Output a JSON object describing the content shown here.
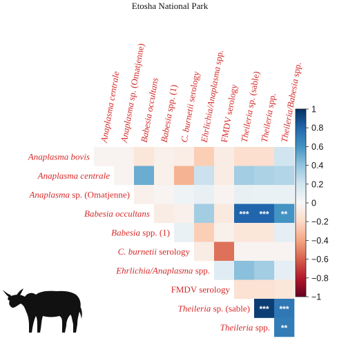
{
  "chart_data": {
    "type": "heatmap",
    "title": "Etosha National Park",
    "variables": [
      "Anaplasma bovis",
      "Anaplasma centrale",
      "Anaplasma sp. (Omatjenne)",
      "Babesia occultans",
      "Babesia spp. (1)",
      "C. burnetii serology",
      "Ehrlichia/Anaplasma spp.",
      "FMDV serology",
      "Theileria sp. (sable)",
      "Theileria spp.",
      "Theileria/Babesia spp."
    ],
    "row_labels": [
      {
        "parts": [
          {
            "t": "Anaplasma bovis",
            "i": true
          }
        ]
      },
      {
        "parts": [
          {
            "t": "Anaplasma centrale",
            "i": true
          }
        ]
      },
      {
        "parts": [
          {
            "t": "Anaplasma",
            "i": true
          },
          {
            "t": " sp. (Omatjenne)",
            "i": false
          }
        ]
      },
      {
        "parts": [
          {
            "t": "Babesia occultans",
            "i": true
          }
        ]
      },
      {
        "parts": [
          {
            "t": "Babesia",
            "i": true
          },
          {
            "t": " spp. (1)",
            "i": false
          }
        ]
      },
      {
        "parts": [
          {
            "t": "C. burnetii",
            "i": true
          },
          {
            "t": " serology",
            "i": false
          }
        ]
      },
      {
        "parts": [
          {
            "t": "Ehrlichia/Anaplasma",
            "i": true
          },
          {
            "t": " spp.",
            "i": false
          }
        ]
      },
      {
        "parts": [
          {
            "t": "FMDV serology",
            "i": false
          }
        ]
      },
      {
        "parts": [
          {
            "t": "Theileria",
            "i": true
          },
          {
            "t": " sp. (sable)",
            "i": false
          }
        ]
      },
      {
        "parts": [
          {
            "t": "Theileria",
            "i": true
          },
          {
            "t": " spp.",
            "i": false
          }
        ]
      }
    ],
    "column_labels": [
      {
        "parts": [
          {
            "t": "Anaplasma centrale",
            "i": true
          }
        ]
      },
      {
        "parts": [
          {
            "t": "Anaplasma",
            "i": true
          },
          {
            "t": " sp. (Omatjenne)",
            "i": false
          }
        ]
      },
      {
        "parts": [
          {
            "t": "Babesia occultans",
            "i": true
          }
        ]
      },
      {
        "parts": [
          {
            "t": "Babesia",
            "i": true
          },
          {
            "t": " spp. (1)",
            "i": false
          }
        ]
      },
      {
        "parts": [
          {
            "t": "C. burnetii",
            "i": true
          },
          {
            "t": " serology",
            "i": false
          }
        ]
      },
      {
        "parts": [
          {
            "t": "Ehrlichia/Anaplasma",
            "i": true
          },
          {
            "t": " spp.",
            "i": false
          }
        ]
      },
      {
        "parts": [
          {
            "t": "FMDV serology",
            "i": false
          }
        ]
      },
      {
        "parts": [
          {
            "t": "Theileria",
            "i": true
          },
          {
            "t": " sp. (sable)",
            "i": false
          }
        ]
      },
      {
        "parts": [
          {
            "t": "Theileria",
            "i": true
          },
          {
            "t": " spp.",
            "i": false
          }
        ]
      },
      {
        "parts": [
          {
            "t": "Theileria/Babesia",
            "i": true
          },
          {
            "t": " spp.",
            "i": false
          }
        ]
      }
    ],
    "cells": [
      {
        "row": 0,
        "col": 0,
        "value": -0.03
      },
      {
        "row": 0,
        "col": 1,
        "value": -0.03
      },
      {
        "row": 0,
        "col": 2,
        "value": -0.12
      },
      {
        "row": 0,
        "col": 3,
        "value": -0.05
      },
      {
        "row": 0,
        "col": 4,
        "value": -0.07
      },
      {
        "row": 0,
        "col": 5,
        "value": -0.25
      },
      {
        "row": 0,
        "col": 6,
        "value": -0.08
      },
      {
        "row": 0,
        "col": 7,
        "value": -0.17
      },
      {
        "row": 0,
        "col": 8,
        "value": -0.17
      },
      {
        "row": 0,
        "col": 9,
        "value": 0.2
      },
      {
        "row": 1,
        "col": 1,
        "value": -0.03
      },
      {
        "row": 1,
        "col": 2,
        "value": 0.5
      },
      {
        "row": 1,
        "col": 3,
        "value": -0.05
      },
      {
        "row": 1,
        "col": 4,
        "value": -0.35
      },
      {
        "row": 1,
        "col": 5,
        "value": 0.22
      },
      {
        "row": 1,
        "col": 6,
        "value": -0.08
      },
      {
        "row": 1,
        "col": 7,
        "value": 0.35
      },
      {
        "row": 1,
        "col": 8,
        "value": 0.32
      },
      {
        "row": 1,
        "col": 9,
        "value": 0.3
      },
      {
        "row": 2,
        "col": 2,
        "value": -0.05
      },
      {
        "row": 2,
        "col": 3,
        "value": -0.02
      },
      {
        "row": 2,
        "col": 4,
        "value": 0.05
      },
      {
        "row": 2,
        "col": 5,
        "value": 0.08
      },
      {
        "row": 2,
        "col": 6,
        "value": -0.03
      },
      {
        "row": 2,
        "col": 7,
        "value": 0.08
      },
      {
        "row": 2,
        "col": 8,
        "value": 0.07
      },
      {
        "row": 2,
        "col": 9,
        "value": 0.07
      },
      {
        "row": 3,
        "col": 3,
        "value": -0.08
      },
      {
        "row": 3,
        "col": 4,
        "value": -0.05
      },
      {
        "row": 3,
        "col": 5,
        "value": 0.35
      },
      {
        "row": 3,
        "col": 6,
        "value": -0.1
      },
      {
        "row": 3,
        "col": 7,
        "value": 0.8
      },
      {
        "row": 3,
        "col": 8,
        "value": 0.8
      },
      {
        "row": 3,
        "col": 9,
        "value": 0.6
      },
      {
        "row": 4,
        "col": 4,
        "value": 0.07
      },
      {
        "row": 4,
        "col": 5,
        "value": -0.25
      },
      {
        "row": 4,
        "col": 6,
        "value": -0.05
      },
      {
        "row": 4,
        "col": 7,
        "value": -0.12
      },
      {
        "row": 4,
        "col": 8,
        "value": -0.12
      },
      {
        "row": 4,
        "col": 9,
        "value": 0.1
      },
      {
        "row": 5,
        "col": 5,
        "value": -0.08
      },
      {
        "row": 5,
        "col": 6,
        "value": -0.55
      },
      {
        "row": 5,
        "col": 7,
        "value": -0.03
      },
      {
        "row": 5,
        "col": 8,
        "value": -0.03
      },
      {
        "row": 5,
        "col": 9,
        "value": -0.03
      },
      {
        "row": 6,
        "col": 6,
        "value": 0.12
      },
      {
        "row": 6,
        "col": 7,
        "value": 0.42
      },
      {
        "row": 6,
        "col": 8,
        "value": 0.35
      },
      {
        "row": 6,
        "col": 9,
        "value": 0.1
      },
      {
        "row": 7,
        "col": 7,
        "value": -0.15
      },
      {
        "row": 7,
        "col": 8,
        "value": -0.15
      },
      {
        "row": 7,
        "col": 9,
        "value": -0.12
      },
      {
        "row": 8,
        "col": 8,
        "value": 0.95
      },
      {
        "row": 8,
        "col": 9,
        "value": 0.72
      },
      {
        "row": 9,
        "col": 9,
        "value": 0.7
      }
    ],
    "significance": [
      {
        "row": 3,
        "col": 7,
        "label": "***"
      },
      {
        "row": 3,
        "col": 8,
        "label": "***"
      },
      {
        "row": 3,
        "col": 9,
        "label": "**"
      },
      {
        "row": 8,
        "col": 8,
        "label": "***"
      },
      {
        "row": 8,
        "col": 9,
        "label": "***"
      },
      {
        "row": 9,
        "col": 9,
        "label": "**"
      }
    ],
    "colorbar": {
      "range": [
        -1,
        1
      ],
      "ticks": [
        1,
        0.8,
        0.6,
        0.4,
        0.2,
        0,
        -0.2,
        -0.4,
        -0.6,
        -0.8,
        -1
      ],
      "tick_labels": [
        "1",
        "0.8",
        "0.6",
        "0.4",
        "0.2",
        "0",
        "−0.2",
        "−0.4",
        "−0.6",
        "−0.8",
        "−1"
      ]
    },
    "colors": {
      "negative_strong": "#67001f",
      "neutral": "#f7f7f7",
      "positive_strong": "#053061",
      "label_color": "#d62a2a"
    },
    "icon": "wildebeest-silhouette-icon"
  }
}
